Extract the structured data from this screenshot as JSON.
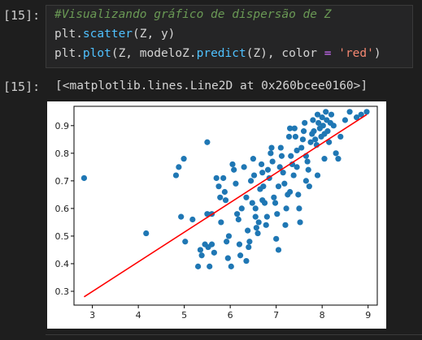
{
  "cell_input": {
    "prompt": "[15]:",
    "comment": "#Visualizando gráfico de dispersão de Z",
    "line2_prefix": "plt.",
    "line2_call": "scatter",
    "line2_suffix": "(Z, y)",
    "line3_prefix": "plt.",
    "line3_call1": "plot",
    "line3_mid1": "(Z, modeloZ.",
    "line3_call2": "predict",
    "line3_mid2": "(Z), color ",
    "line3_eq": "=",
    "line3_space": " ",
    "line3_str": "'red'",
    "line3_close": ")"
  },
  "cell_output": {
    "prompt": "[15]:",
    "text": "[<matplotlib.lines.Line2D at 0x260bcee0160>]"
  },
  "chart_data": {
    "type": "scatter",
    "xlim": [
      2.6,
      9.2
    ],
    "ylim": [
      0.25,
      0.97
    ],
    "xticks": [
      "3",
      "4",
      "5",
      "6",
      "7",
      "8",
      "9"
    ],
    "yticks": [
      "0.3",
      "0.4",
      "0.5",
      "0.6",
      "0.7",
      "0.8",
      "0.9"
    ],
    "grid": false,
    "point_color": "#1f77b4",
    "line_color": "#ff0000",
    "regression_line": {
      "x": [
        2.82,
        8.97
      ],
      "y": [
        0.28,
        0.94
      ]
    },
    "points": [
      [
        2.82,
        0.71
      ],
      [
        4.17,
        0.51
      ],
      [
        4.82,
        0.72
      ],
      [
        4.88,
        0.75
      ],
      [
        4.99,
        0.78
      ],
      [
        4.93,
        0.57
      ],
      [
        5.02,
        0.48
      ],
      [
        5.18,
        0.56
      ],
      [
        5.5,
        0.84
      ],
      [
        5.5,
        0.58
      ],
      [
        5.3,
        0.39
      ],
      [
        5.35,
        0.45
      ],
      [
        5.38,
        0.43
      ],
      [
        5.45,
        0.47
      ],
      [
        5.52,
        0.46
      ],
      [
        5.55,
        0.39
      ],
      [
        5.6,
        0.47
      ],
      [
        5.65,
        0.44
      ],
      [
        5.7,
        0.71
      ],
      [
        5.75,
        0.68
      ],
      [
        5.78,
        0.64
      ],
      [
        5.8,
        0.55
      ],
      [
        5.85,
        0.71
      ],
      [
        5.9,
        0.63
      ],
      [
        5.92,
        0.48
      ],
      [
        5.95,
        0.42
      ],
      [
        5.97,
        0.5
      ],
      [
        6.02,
        0.39
      ],
      [
        6.05,
        0.76
      ],
      [
        6.08,
        0.74
      ],
      [
        6.12,
        0.69
      ],
      [
        6.15,
        0.58
      ],
      [
        6.18,
        0.56
      ],
      [
        6.2,
        0.47
      ],
      [
        6.22,
        0.43
      ],
      [
        6.25,
        0.6
      ],
      [
        6.3,
        0.75
      ],
      [
        6.35,
        0.64
      ],
      [
        6.38,
        0.52
      ],
      [
        6.4,
        0.46
      ],
      [
        6.42,
        0.48
      ],
      [
        6.45,
        0.7
      ],
      [
        6.48,
        0.62
      ],
      [
        6.5,
        0.78
      ],
      [
        6.52,
        0.72
      ],
      [
        6.55,
        0.6
      ],
      [
        6.57,
        0.53
      ],
      [
        6.6,
        0.51
      ],
      [
        6.62,
        0.55
      ],
      [
        6.65,
        0.67
      ],
      [
        6.68,
        0.76
      ],
      [
        6.7,
        0.73
      ],
      [
        6.72,
        0.68
      ],
      [
        6.75,
        0.62
      ],
      [
        6.78,
        0.54
      ],
      [
        6.8,
        0.57
      ],
      [
        6.82,
        0.74
      ],
      [
        6.85,
        0.71
      ],
      [
        6.88,
        0.8
      ],
      [
        6.9,
        0.82
      ],
      [
        6.92,
        0.77
      ],
      [
        6.95,
        0.64
      ],
      [
        6.98,
        0.62
      ],
      [
        7.0,
        0.49
      ],
      [
        7.02,
        0.58
      ],
      [
        7.05,
        0.68
      ],
      [
        7.08,
        0.75
      ],
      [
        7.1,
        0.82
      ],
      [
        7.12,
        0.79
      ],
      [
        7.15,
        0.73
      ],
      [
        7.18,
        0.69
      ],
      [
        7.2,
        0.54
      ],
      [
        7.22,
        0.6
      ],
      [
        7.25,
        0.65
      ],
      [
        7.28,
        0.86
      ],
      [
        7.3,
        0.89
      ],
      [
        7.32,
        0.79
      ],
      [
        7.35,
        0.76
      ],
      [
        7.38,
        0.72
      ],
      [
        7.4,
        0.89
      ],
      [
        7.42,
        0.86
      ],
      [
        7.45,
        0.81
      ],
      [
        7.48,
        0.65
      ],
      [
        7.5,
        0.6
      ],
      [
        7.52,
        0.55
      ],
      [
        7.55,
        0.82
      ],
      [
        7.58,
        0.85
      ],
      [
        7.6,
        0.88
      ],
      [
        7.62,
        0.91
      ],
      [
        7.65,
        0.79
      ],
      [
        7.68,
        0.77
      ],
      [
        7.7,
        0.74
      ],
      [
        7.72,
        0.68
      ],
      [
        7.75,
        0.84
      ],
      [
        7.78,
        0.87
      ],
      [
        7.8,
        0.92
      ],
      [
        7.82,
        0.88
      ],
      [
        7.85,
        0.85
      ],
      [
        7.88,
        0.83
      ],
      [
        7.9,
        0.94
      ],
      [
        7.92,
        0.91
      ],
      [
        7.95,
        0.89
      ],
      [
        7.98,
        0.86
      ],
      [
        8.0,
        0.93
      ],
      [
        8.02,
        0.9
      ],
      [
        8.05,
        0.87
      ],
      [
        8.08,
        0.95
      ],
      [
        8.1,
        0.92
      ],
      [
        8.12,
        0.88
      ],
      [
        8.15,
        0.84
      ],
      [
        8.18,
        0.91
      ],
      [
        8.2,
        0.94
      ],
      [
        8.25,
        0.9
      ],
      [
        8.3,
        0.8
      ],
      [
        8.35,
        0.78
      ],
      [
        8.4,
        0.86
      ],
      [
        8.5,
        0.92
      ],
      [
        8.6,
        0.95
      ],
      [
        8.75,
        0.93
      ],
      [
        8.85,
        0.94
      ],
      [
        8.97,
        0.95
      ],
      [
        7.65,
        0.7
      ],
      [
        7.3,
        0.66
      ],
      [
        6.7,
        0.63
      ],
      [
        5.88,
        0.66
      ],
      [
        6.55,
        0.57
      ],
      [
        7.05,
        0.45
      ],
      [
        6.35,
        0.41
      ],
      [
        5.6,
        0.58
      ],
      [
        7.9,
        0.72
      ],
      [
        8.05,
        0.78
      ],
      [
        7.45,
        0.75
      ]
    ]
  }
}
